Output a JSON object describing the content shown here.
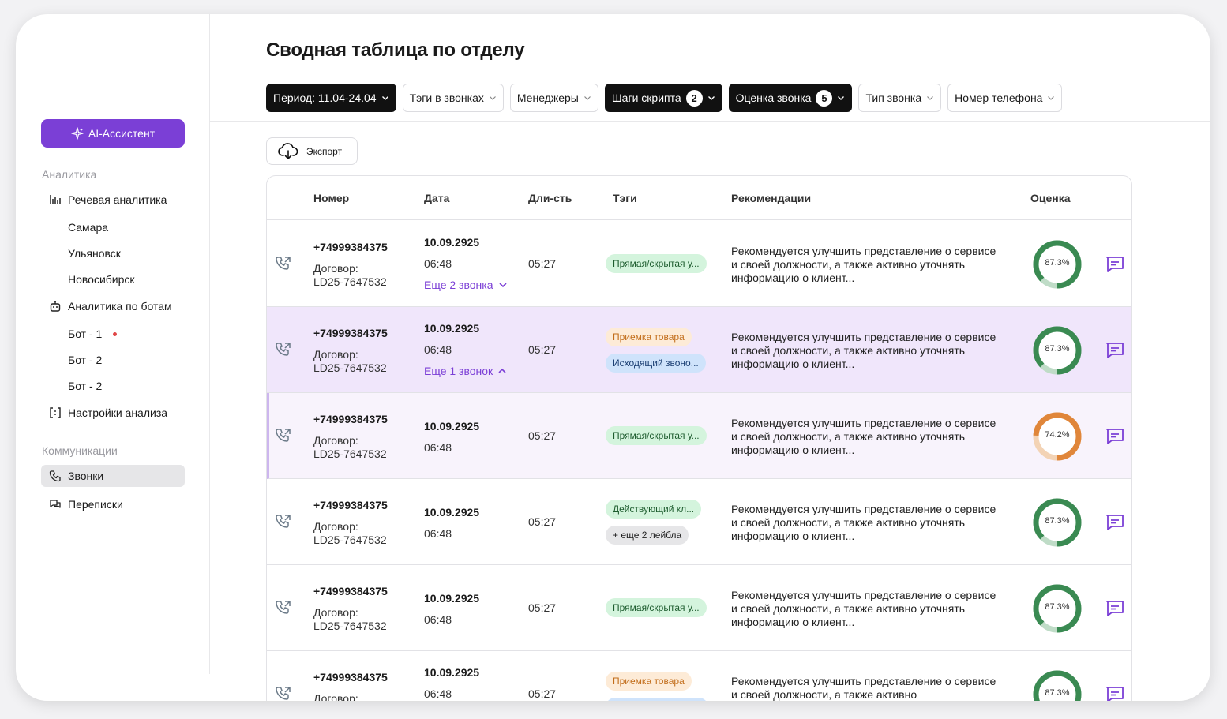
{
  "sidebar": {
    "ai_button": "AI-Ассистент",
    "analytics_label": "Аналитика",
    "speech_analytics": "Речевая аналитика",
    "cities": [
      "Самара",
      "Ульяновск",
      "Новосибирск"
    ],
    "bots_analytics": "Аналитика по ботам",
    "bots": [
      "Бот - 1",
      "Бот - 2",
      "Бот - 2"
    ],
    "analysis_settings": "Настройки анализа",
    "comms_label": "Коммуникации",
    "calls": "Звонки",
    "chats": "Переписки"
  },
  "page": {
    "title": "Сводная таблица по отделу",
    "export": "Экспорт"
  },
  "filters": {
    "period": "Период: 11.04-24.04",
    "tags": "Тэги в звонках",
    "managers": "Менеджеры",
    "script_steps": "Шаги скрипта",
    "script_steps_count": "2",
    "call_rating": "Оценка звонка",
    "call_rating_count": "5",
    "call_type": "Тип звонка",
    "phone_number": "Номер телефона"
  },
  "table": {
    "headers": {
      "number": "Номер",
      "date": "Дата",
      "duration": "Дли-сть",
      "tags": "Тэги",
      "recommendations": "Рекомендации",
      "rating": "Оценка"
    },
    "rows": [
      {
        "phone": "+74999384375",
        "contract_label": "Договор:",
        "contract": "LD25-7647532",
        "date": "10.09.2925",
        "time": "06:48",
        "more": "Еще 2 звонка",
        "duration": "05:27",
        "tag1": "Прямая/скрытая у...",
        "rec": "Рекомендуется улучшить представление о сервисе и своей должности, а также активно уточнять информацию о клиент...",
        "score": "87.3%",
        "score_value": 87.3
      },
      {
        "phone": "+74999384375",
        "contract_label": "Договор:",
        "contract": "LD25-7647532",
        "date": "10.09.2925",
        "time": "06:48",
        "more": "Еще 1 звонок",
        "duration": "05:27",
        "tag1": "Приемка товара",
        "tag2": "Исходящий звоно...",
        "rec": "Рекомендуется улучшить представление о сервисе и своей должности, а также активно уточнять информацию о клиент...",
        "score": "87.3%",
        "score_value": 87.3
      },
      {
        "phone": "+74999384375",
        "contract_label": "Договор:",
        "contract": "LD25-7647532",
        "date": "10.09.2925",
        "time": "06:48",
        "duration": "05:27",
        "tag1": "Прямая/скрытая у...",
        "rec": "Рекомендуется улучшить представление о сервисе и своей должности, а также активно уточнять информацию о клиент...",
        "score": "74.2%",
        "score_value": 74.2
      },
      {
        "phone": "+74999384375",
        "contract_label": "Договор:",
        "contract": "LD25-7647532",
        "date": "10.09.2925",
        "time": "06:48",
        "duration": "05:27",
        "tag1": "Действующий кл...",
        "tag2": "+ еще 2 лейбла",
        "rec": "Рекомендуется улучшить представление о сервисе и своей должности, а также активно уточнять информацию о клиент...",
        "score": "87.3%",
        "score_value": 87.3
      },
      {
        "phone": "+74999384375",
        "contract_label": "Договор:",
        "contract": "LD25-7647532",
        "date": "10.09.2925",
        "time": "06:48",
        "duration": "05:27",
        "tag1": "Прямая/скрытая у...",
        "rec": "Рекомендуется улучшить представление о сервисе и своей должности, а также активно уточнять информацию о клиент...",
        "score": "87.3%",
        "score_value": 87.3
      },
      {
        "phone": "+74999384375",
        "contract_label": "Договор:",
        "date": "10.09.2925",
        "time": "06:48",
        "duration": "05:27",
        "tag1": "Приемка товара",
        "rec": "Рекомендуется улучшить представление о сервисе и своей должности, а также активно",
        "score": "87.3%",
        "score_value": 87.3
      }
    ]
  },
  "colors": {
    "accent": "#7b3fd6",
    "score_good": "#3a8a52",
    "score_good_track": "#bfdcc7",
    "score_mid": "#e0863a",
    "score_mid_track": "#f3d3b5"
  }
}
